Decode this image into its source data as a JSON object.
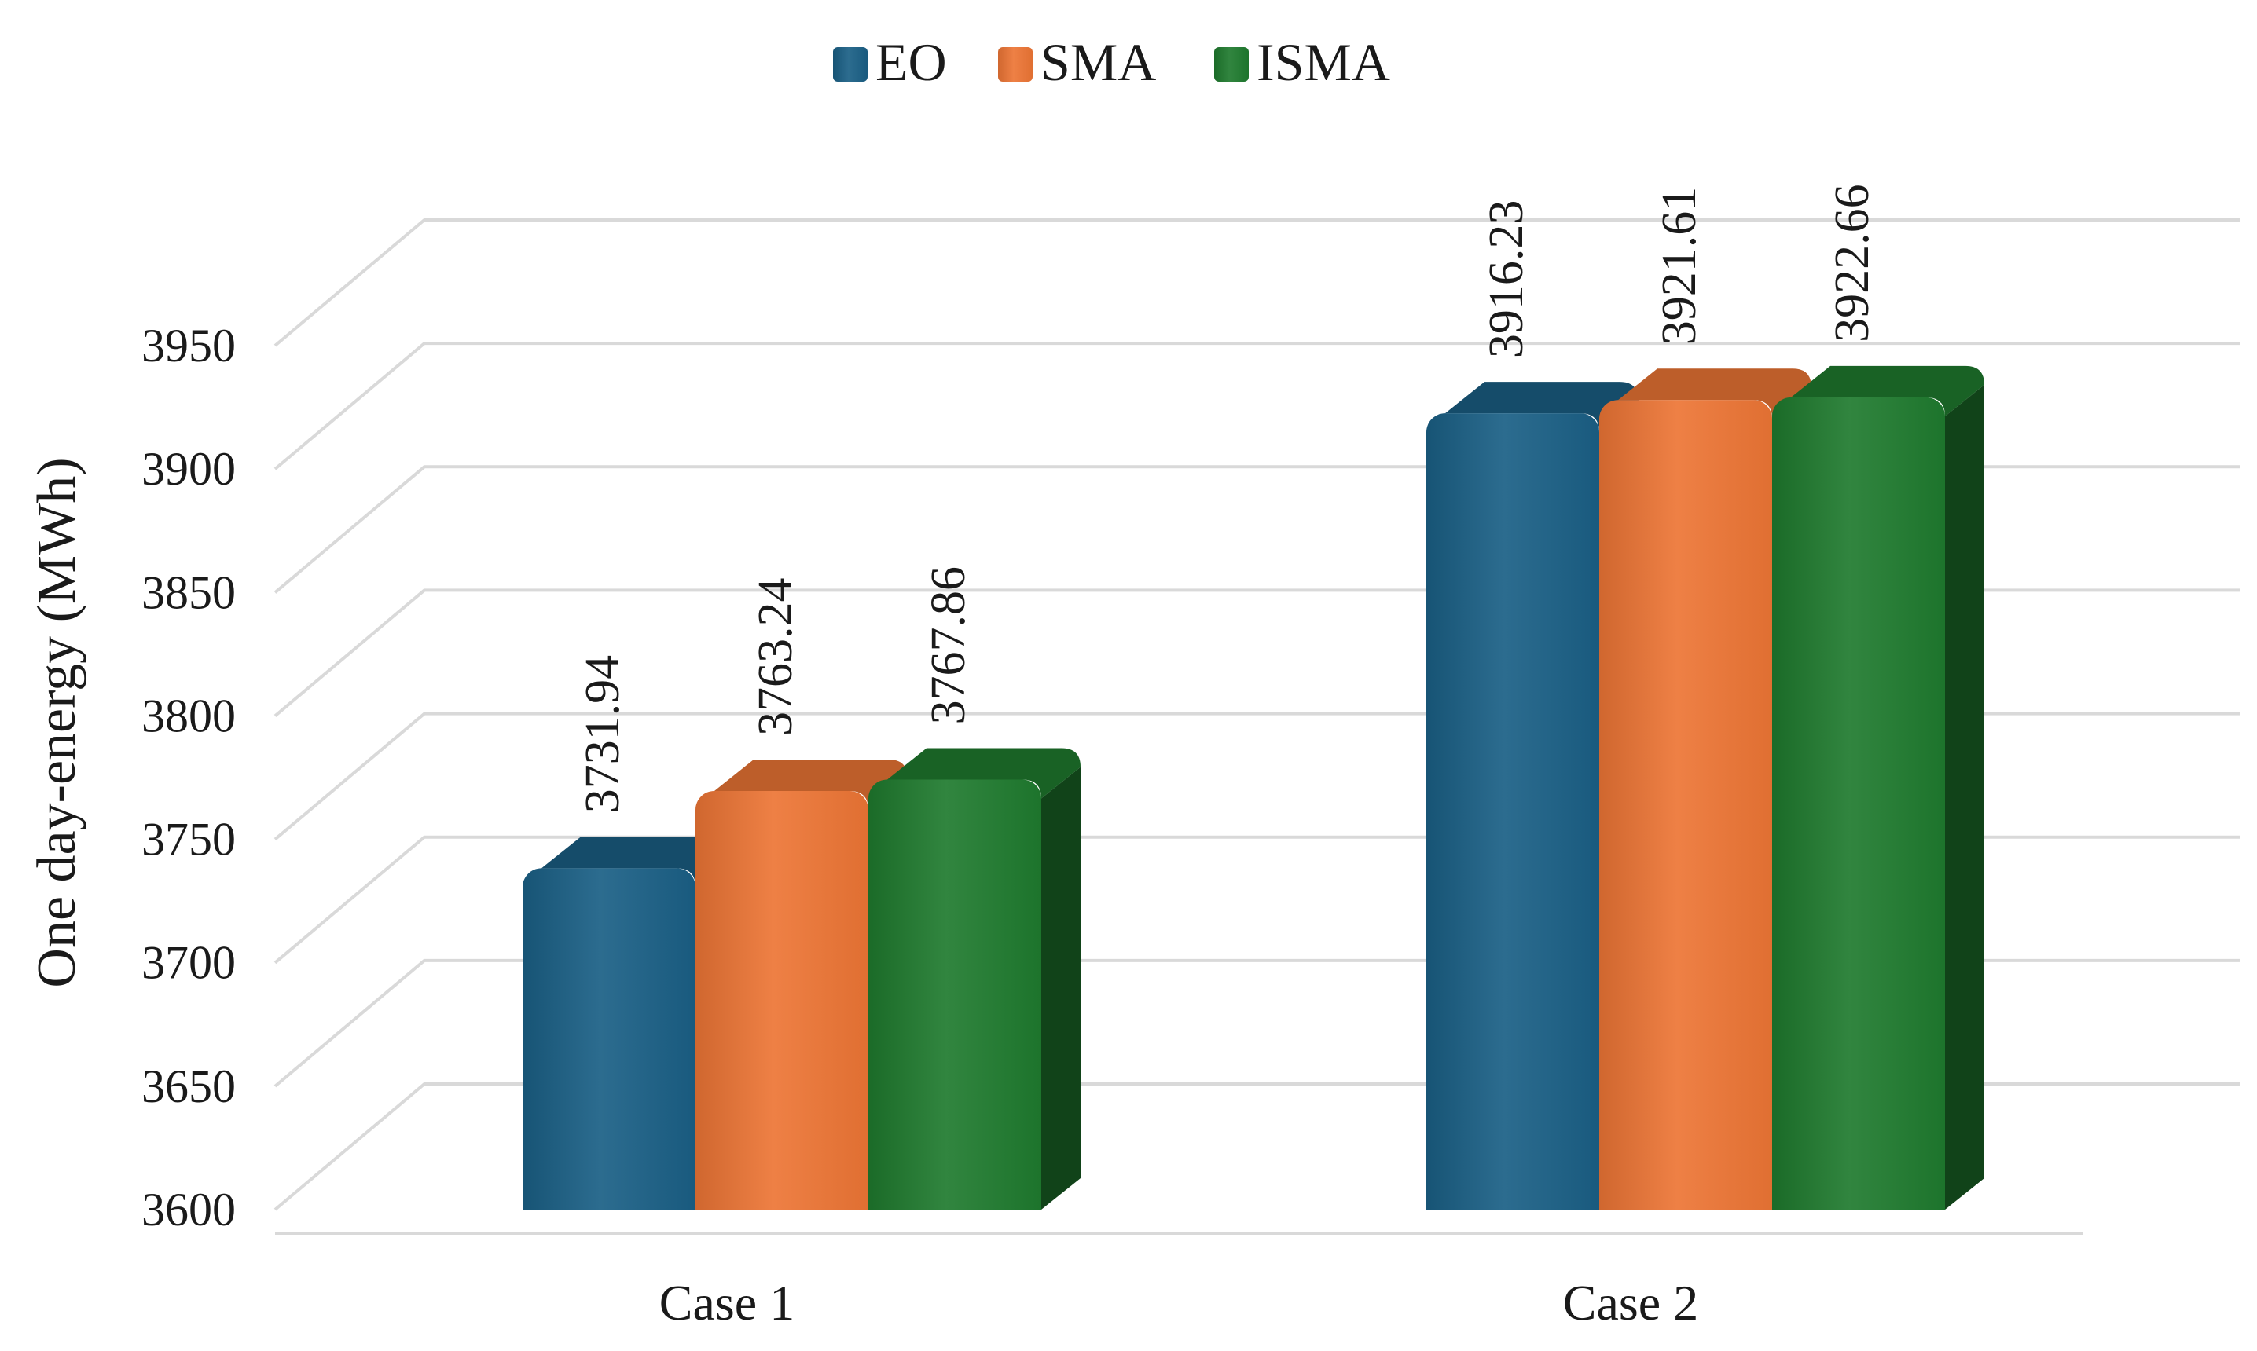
{
  "chart_data": {
    "type": "bar",
    "title": "",
    "xlabel": "",
    "ylabel": "One day-energy (MWh)",
    "categories": [
      "Case 1",
      "Case 2"
    ],
    "series": [
      {
        "name": "EO",
        "values": [
          3731.94,
          3916.23
        ],
        "value_labels": [
          "3731.94",
          "3916.23"
        ]
      },
      {
        "name": "SMA",
        "values": [
          3763.24,
          3921.61
        ],
        "value_labels": [
          "3763.24",
          "3921.61"
        ]
      },
      {
        "name": "ISMA",
        "values": [
          3767.86,
          3922.66
        ],
        "value_labels": [
          "3767.86",
          "3922.66"
        ]
      }
    ],
    "ylim": [
      3600,
      3950
    ],
    "yticks": [
      "3600",
      "3650",
      "3700",
      "3750",
      "3800",
      "3850",
      "3900",
      "3950"
    ],
    "grid": true,
    "legend": "top-center",
    "style": "3d-cylinder"
  },
  "colors": {
    "EO": "#1a5f85",
    "SMA": "#ec7535",
    "ISMA": "#1f7a2e",
    "grid": "#d9d9d9"
  }
}
